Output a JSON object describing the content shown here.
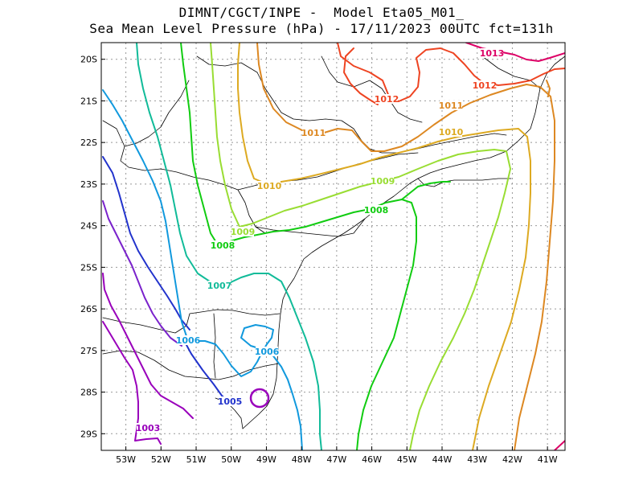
{
  "title": {
    "line1": "DIMNT/CGCT/INPE -  Model Eta05_M01_",
    "line2": "Sea Mean Level Pressure (hPa) - 17/11/2023 00UTC fct=131h"
  },
  "map": {
    "lon_labels": [
      "53W",
      "52W",
      "51W",
      "50W",
      "49W",
      "48W",
      "47W",
      "46W",
      "45W",
      "44W",
      "43W",
      "42W",
      "41W"
    ],
    "lat_labels": [
      "20S",
      "21S",
      "22S",
      "23S",
      "24S",
      "25S",
      "26S",
      "27S",
      "28S",
      "29S"
    ],
    "lon_range": [
      -53.7,
      -40.5
    ],
    "lat_range": [
      -29.4,
      -19.6
    ],
    "units": "hPa"
  },
  "contours": [
    {
      "value": 1003,
      "label": "1003",
      "color": "#9900bb"
    },
    {
      "value": 1004,
      "label": "",
      "color": "#7a22cc"
    },
    {
      "value": 1005,
      "label": "1005",
      "color": "#2233cc"
    },
    {
      "value": 1006,
      "label": "1006",
      "color": "#1199dd"
    },
    {
      "value": 1007,
      "label": "1007",
      "color": "#11bb99"
    },
    {
      "value": 1008,
      "label": "1008",
      "color": "#11cc11"
    },
    {
      "value": 1009,
      "label": "1009",
      "color": "#99dd33"
    },
    {
      "value": 1010,
      "label": "1010",
      "color": "#ddaa22"
    },
    {
      "value": 1011,
      "label": "1011",
      "color": "#dd8822"
    },
    {
      "value": 1012,
      "label": "1012",
      "color": "#ee4422"
    },
    {
      "value": 1013,
      "label": "1013",
      "color": "#dd0066"
    }
  ]
}
